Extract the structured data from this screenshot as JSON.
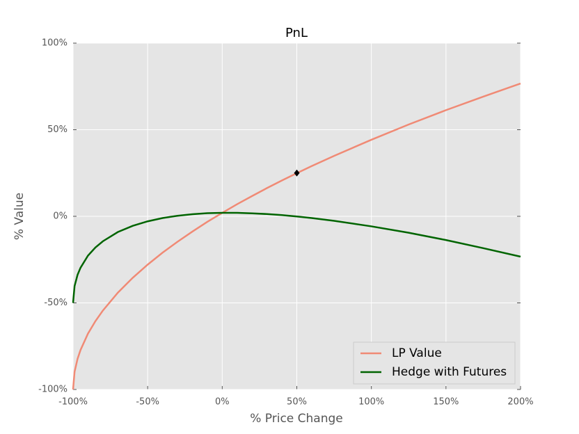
{
  "chart_data": {
    "type": "line",
    "title": "PnL",
    "x_label": "% Price Change",
    "y_label": "% Value",
    "x": [
      -100,
      -99,
      -97,
      -95,
      -90,
      -85,
      -80,
      -70,
      -60,
      -50,
      -40,
      -30,
      -20,
      -10,
      0,
      10,
      20,
      30,
      40,
      50,
      60,
      75,
      100,
      125,
      150,
      175,
      200
    ],
    "series": [
      {
        "name": "LP Value",
        "color": "#f08a75",
        "values": [
          -100,
          -89.8,
          -82.3,
          -77.2,
          -67.7,
          -60.5,
          -54.4,
          -44.1,
          -35.5,
          -27.9,
          -21.0,
          -14.7,
          -8.8,
          -3.2,
          2.0,
          7.0,
          11.7,
          16.3,
          20.7,
          24.9,
          29.0,
          34.9,
          44.2,
          53.0,
          61.3,
          69.1,
          76.7
        ]
      },
      {
        "name": "Hedge with Futures",
        "color": "#006400",
        "values": [
          -50,
          -40.3,
          -33.8,
          -29.7,
          -22.7,
          -18.0,
          -14.4,
          -9.1,
          -5.5,
          -2.9,
          -1.0,
          0.3,
          1.2,
          1.8,
          2.0,
          2.0,
          1.7,
          1.3,
          0.7,
          -0.1,
          -1.0,
          -2.6,
          -5.8,
          -9.5,
          -13.7,
          -18.4,
          -23.3
        ]
      }
    ],
    "marker": {
      "x": 50,
      "y": 25,
      "color": "#000000"
    },
    "xlim": [
      -100,
      200
    ],
    "ylim": [
      -100,
      100
    ],
    "xticks": [
      {
        "value": -100,
        "label": "-100%"
      },
      {
        "value": -50,
        "label": "-50%"
      },
      {
        "value": 0,
        "label": "0%"
      },
      {
        "value": 50,
        "label": "50%"
      },
      {
        "value": 100,
        "label": "100%"
      },
      {
        "value": 150,
        "label": "150%"
      },
      {
        "value": 200,
        "label": "200%"
      }
    ],
    "yticks": [
      {
        "value": -100,
        "label": "-100%"
      },
      {
        "value": -50,
        "label": "-50%"
      },
      {
        "value": 0,
        "label": "0%"
      },
      {
        "value": 50,
        "label": "50%"
      },
      {
        "value": 100,
        "label": "100%"
      }
    ],
    "grid": true,
    "legend": "lower right"
  }
}
